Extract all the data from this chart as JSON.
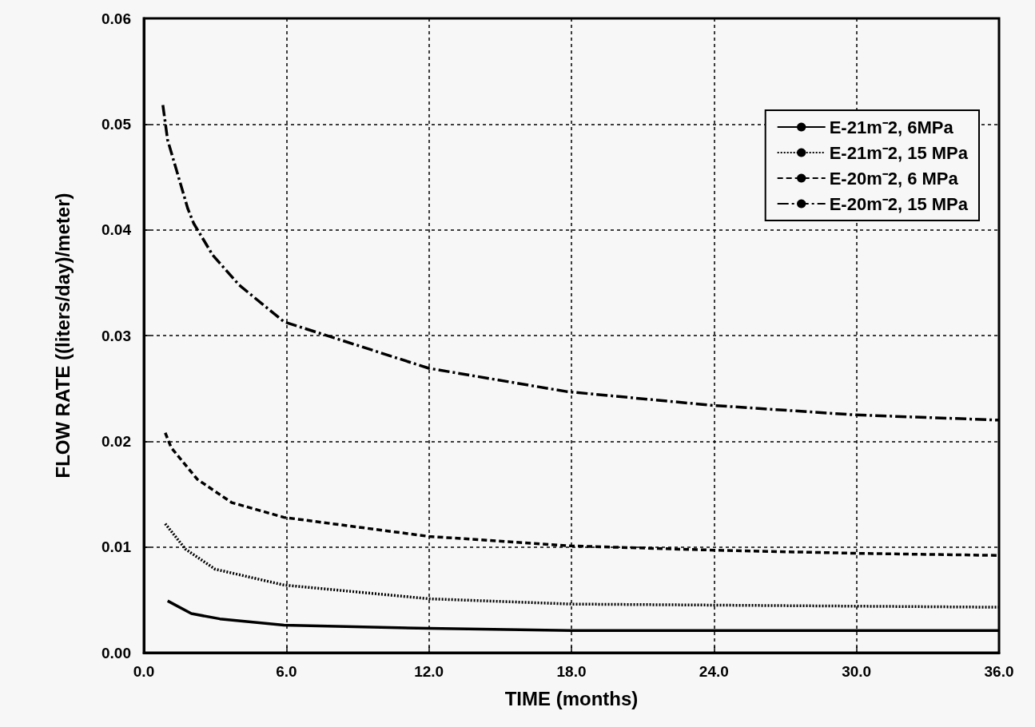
{
  "chart_data": {
    "type": "line",
    "xlabel": "TIME (months)",
    "ylabel": "FLOW RATE ((liters/day)/meter)",
    "xlim": [
      0,
      36
    ],
    "ylim": [
      0,
      0.06
    ],
    "xticks": [
      {
        "value": 0,
        "label": "0.0"
      },
      {
        "value": 6,
        "label": "6.0"
      },
      {
        "value": 12,
        "label": "12.0"
      },
      {
        "value": 18,
        "label": "18.0"
      },
      {
        "value": 24,
        "label": "24.0"
      },
      {
        "value": 30,
        "label": "30.0"
      },
      {
        "value": 36,
        "label": "36.0"
      }
    ],
    "yticks": [
      {
        "value": 0,
        "label": "0.00"
      },
      {
        "value": 0.01,
        "label": "0.01"
      },
      {
        "value": 0.02,
        "label": "0.02"
      },
      {
        "value": 0.03,
        "label": "0.03"
      },
      {
        "value": 0.04,
        "label": "0.04"
      },
      {
        "value": 0.05,
        "label": "0.05"
      },
      {
        "value": 0.06,
        "label": "0.06"
      }
    ],
    "grid": true,
    "legend": "top right",
    "marker": "none",
    "series": [
      {
        "name": "E-21m⁻2, 6MPa",
        "color": "#000000",
        "line_style": "solid",
        "x": [
          1.0,
          2.0,
          3.2,
          5.9,
          12,
          18,
          24,
          30,
          36
        ],
        "values": [
          0.0049,
          0.0037,
          0.0032,
          0.0026,
          0.0023,
          0.0021,
          0.0021,
          0.0021,
          0.0021
        ]
      },
      {
        "name": "E-21m⁻2, 15 MPa",
        "color": "#000000",
        "line_style": "dotted",
        "x": [
          0.9,
          1.75,
          3.0,
          5.9,
          12,
          18,
          24,
          30,
          36
        ],
        "values": [
          0.0122,
          0.0098,
          0.0079,
          0.0064,
          0.0051,
          0.0046,
          0.0045,
          0.0044,
          0.0043
        ]
      },
      {
        "name": "E-20m⁻2, 6 MPa",
        "color": "#000000",
        "line_style": "dashed",
        "x": [
          0.9,
          1.15,
          2.25,
          3.7,
          5.9,
          12,
          18,
          24,
          30,
          36
        ],
        "values": [
          0.0208,
          0.0194,
          0.0164,
          0.0142,
          0.0128,
          0.011,
          0.0101,
          0.0097,
          0.0094,
          0.0092
        ]
      },
      {
        "name": "E-20m⁻2, 15 MPa",
        "color": "#000000",
        "line_style": "dashdot",
        "x": [
          0.8,
          1.0,
          1.85,
          2.1,
          2.9,
          4.0,
          5.9,
          12,
          17.8,
          23.9,
          29.9,
          36
        ],
        "values": [
          0.0518,
          0.0485,
          0.042,
          0.0406,
          0.0376,
          0.0348,
          0.0313,
          0.0269,
          0.0247,
          0.0234,
          0.0225,
          0.022
        ]
      }
    ]
  }
}
